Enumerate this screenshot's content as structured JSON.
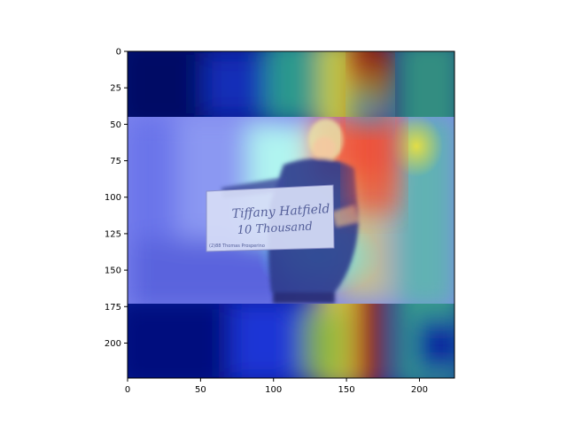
{
  "chart_data": {
    "type": "heatmap",
    "title": "",
    "xlabel": "",
    "ylabel": "",
    "xlim": [
      0,
      224
    ],
    "ylim": [
      224,
      0
    ],
    "x_ticks": [
      {
        "value": 0,
        "label": "0"
      },
      {
        "value": 50,
        "label": "50"
      },
      {
        "value": 100,
        "label": "100"
      },
      {
        "value": 150,
        "label": "150"
      },
      {
        "value": 200,
        "label": "200"
      }
    ],
    "y_ticks": [
      {
        "value": 0,
        "label": "0"
      },
      {
        "value": 25,
        "label": "25"
      },
      {
        "value": 50,
        "label": "50"
      },
      {
        "value": 75,
        "label": "75"
      },
      {
        "value": 100,
        "label": "100"
      },
      {
        "value": 125,
        "label": "125"
      },
      {
        "value": 150,
        "label": "150"
      },
      {
        "value": 175,
        "label": "175"
      },
      {
        "value": 200,
        "label": "200"
      }
    ],
    "image_band_rows": [
      45,
      173
    ],
    "hotspot": {
      "x": 175,
      "y": 40
    },
    "colormap": "jet",
    "grid": false
  },
  "photo": {
    "cheque_text": {
      "payee": "Tiffany Hatfield",
      "amount": "10 Thousand",
      "footer": "(2)88  Thomas Prosperino"
    }
  },
  "colors": {
    "deep": "#000a6e",
    "blue": "#1b34d6",
    "cyan": "#5cf2f0",
    "yellow": "#f0e23a",
    "red": "#b01d10"
  }
}
